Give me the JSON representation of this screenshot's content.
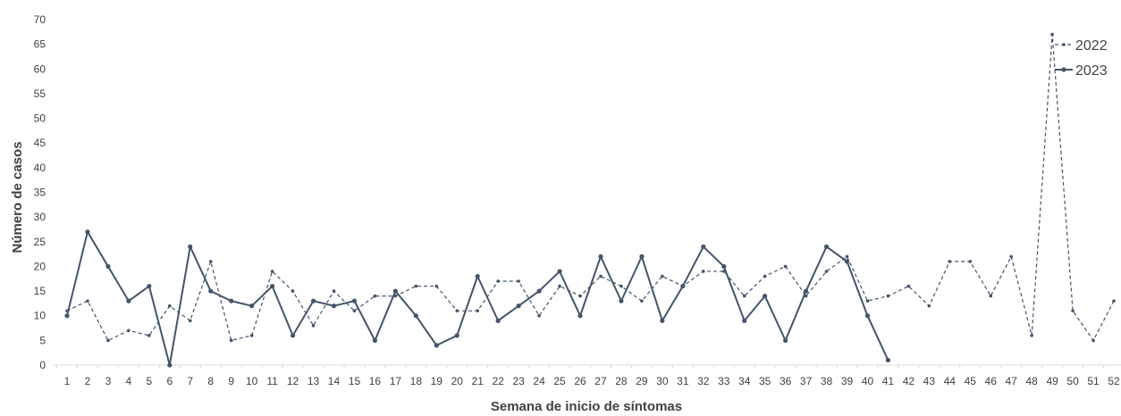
{
  "chart_data": {
    "type": "line",
    "title": "",
    "xlabel": "Semana de inicio de síntomas",
    "ylabel": "Número de casos",
    "ylim": [
      0,
      70
    ],
    "yticks": [
      0,
      5,
      10,
      15,
      20,
      25,
      30,
      35,
      40,
      45,
      50,
      55,
      60,
      65,
      70
    ],
    "categories": [
      "1",
      "2",
      "3",
      "4",
      "5",
      "6",
      "7",
      "8",
      "9",
      "10",
      "11",
      "12",
      "13",
      "14",
      "15",
      "16",
      "17",
      "18",
      "19",
      "20",
      "21",
      "22",
      "23",
      "24",
      "25",
      "26",
      "27",
      "28",
      "29",
      "30",
      "31",
      "32",
      "33",
      "34",
      "35",
      "36",
      "37",
      "38",
      "39",
      "40",
      "41",
      "42",
      "43",
      "44",
      "45",
      "46",
      "47",
      "48",
      "49",
      "50",
      "51",
      "52"
    ],
    "grid": false,
    "legend_position": "top-right",
    "series": [
      {
        "name": "2022",
        "style": "dashed",
        "color": "#44546a",
        "values": [
          11,
          13,
          5,
          7,
          6,
          12,
          9,
          21,
          5,
          6,
          19,
          15,
          8,
          15,
          11,
          14,
          14,
          16,
          16,
          11,
          11,
          17,
          17,
          10,
          16,
          14,
          18,
          16,
          13,
          18,
          16,
          19,
          19,
          14,
          18,
          20,
          14,
          19,
          22,
          13,
          14,
          16,
          12,
          21,
          21,
          14,
          22,
          6,
          67,
          11,
          5,
          13
        ]
      },
      {
        "name": "2023",
        "style": "solid",
        "color": "#44546a",
        "values": [
          10,
          27,
          20,
          13,
          16,
          0,
          24,
          15,
          13,
          12,
          16,
          6,
          13,
          12,
          13,
          5,
          15,
          10,
          4,
          6,
          18,
          9,
          12,
          15,
          19,
          10,
          22,
          13,
          22,
          9,
          16,
          24,
          20,
          9,
          14,
          5,
          15,
          24,
          21,
          10,
          1,
          null,
          null,
          null,
          null,
          null,
          null,
          null,
          null,
          null,
          null,
          null
        ]
      }
    ]
  }
}
